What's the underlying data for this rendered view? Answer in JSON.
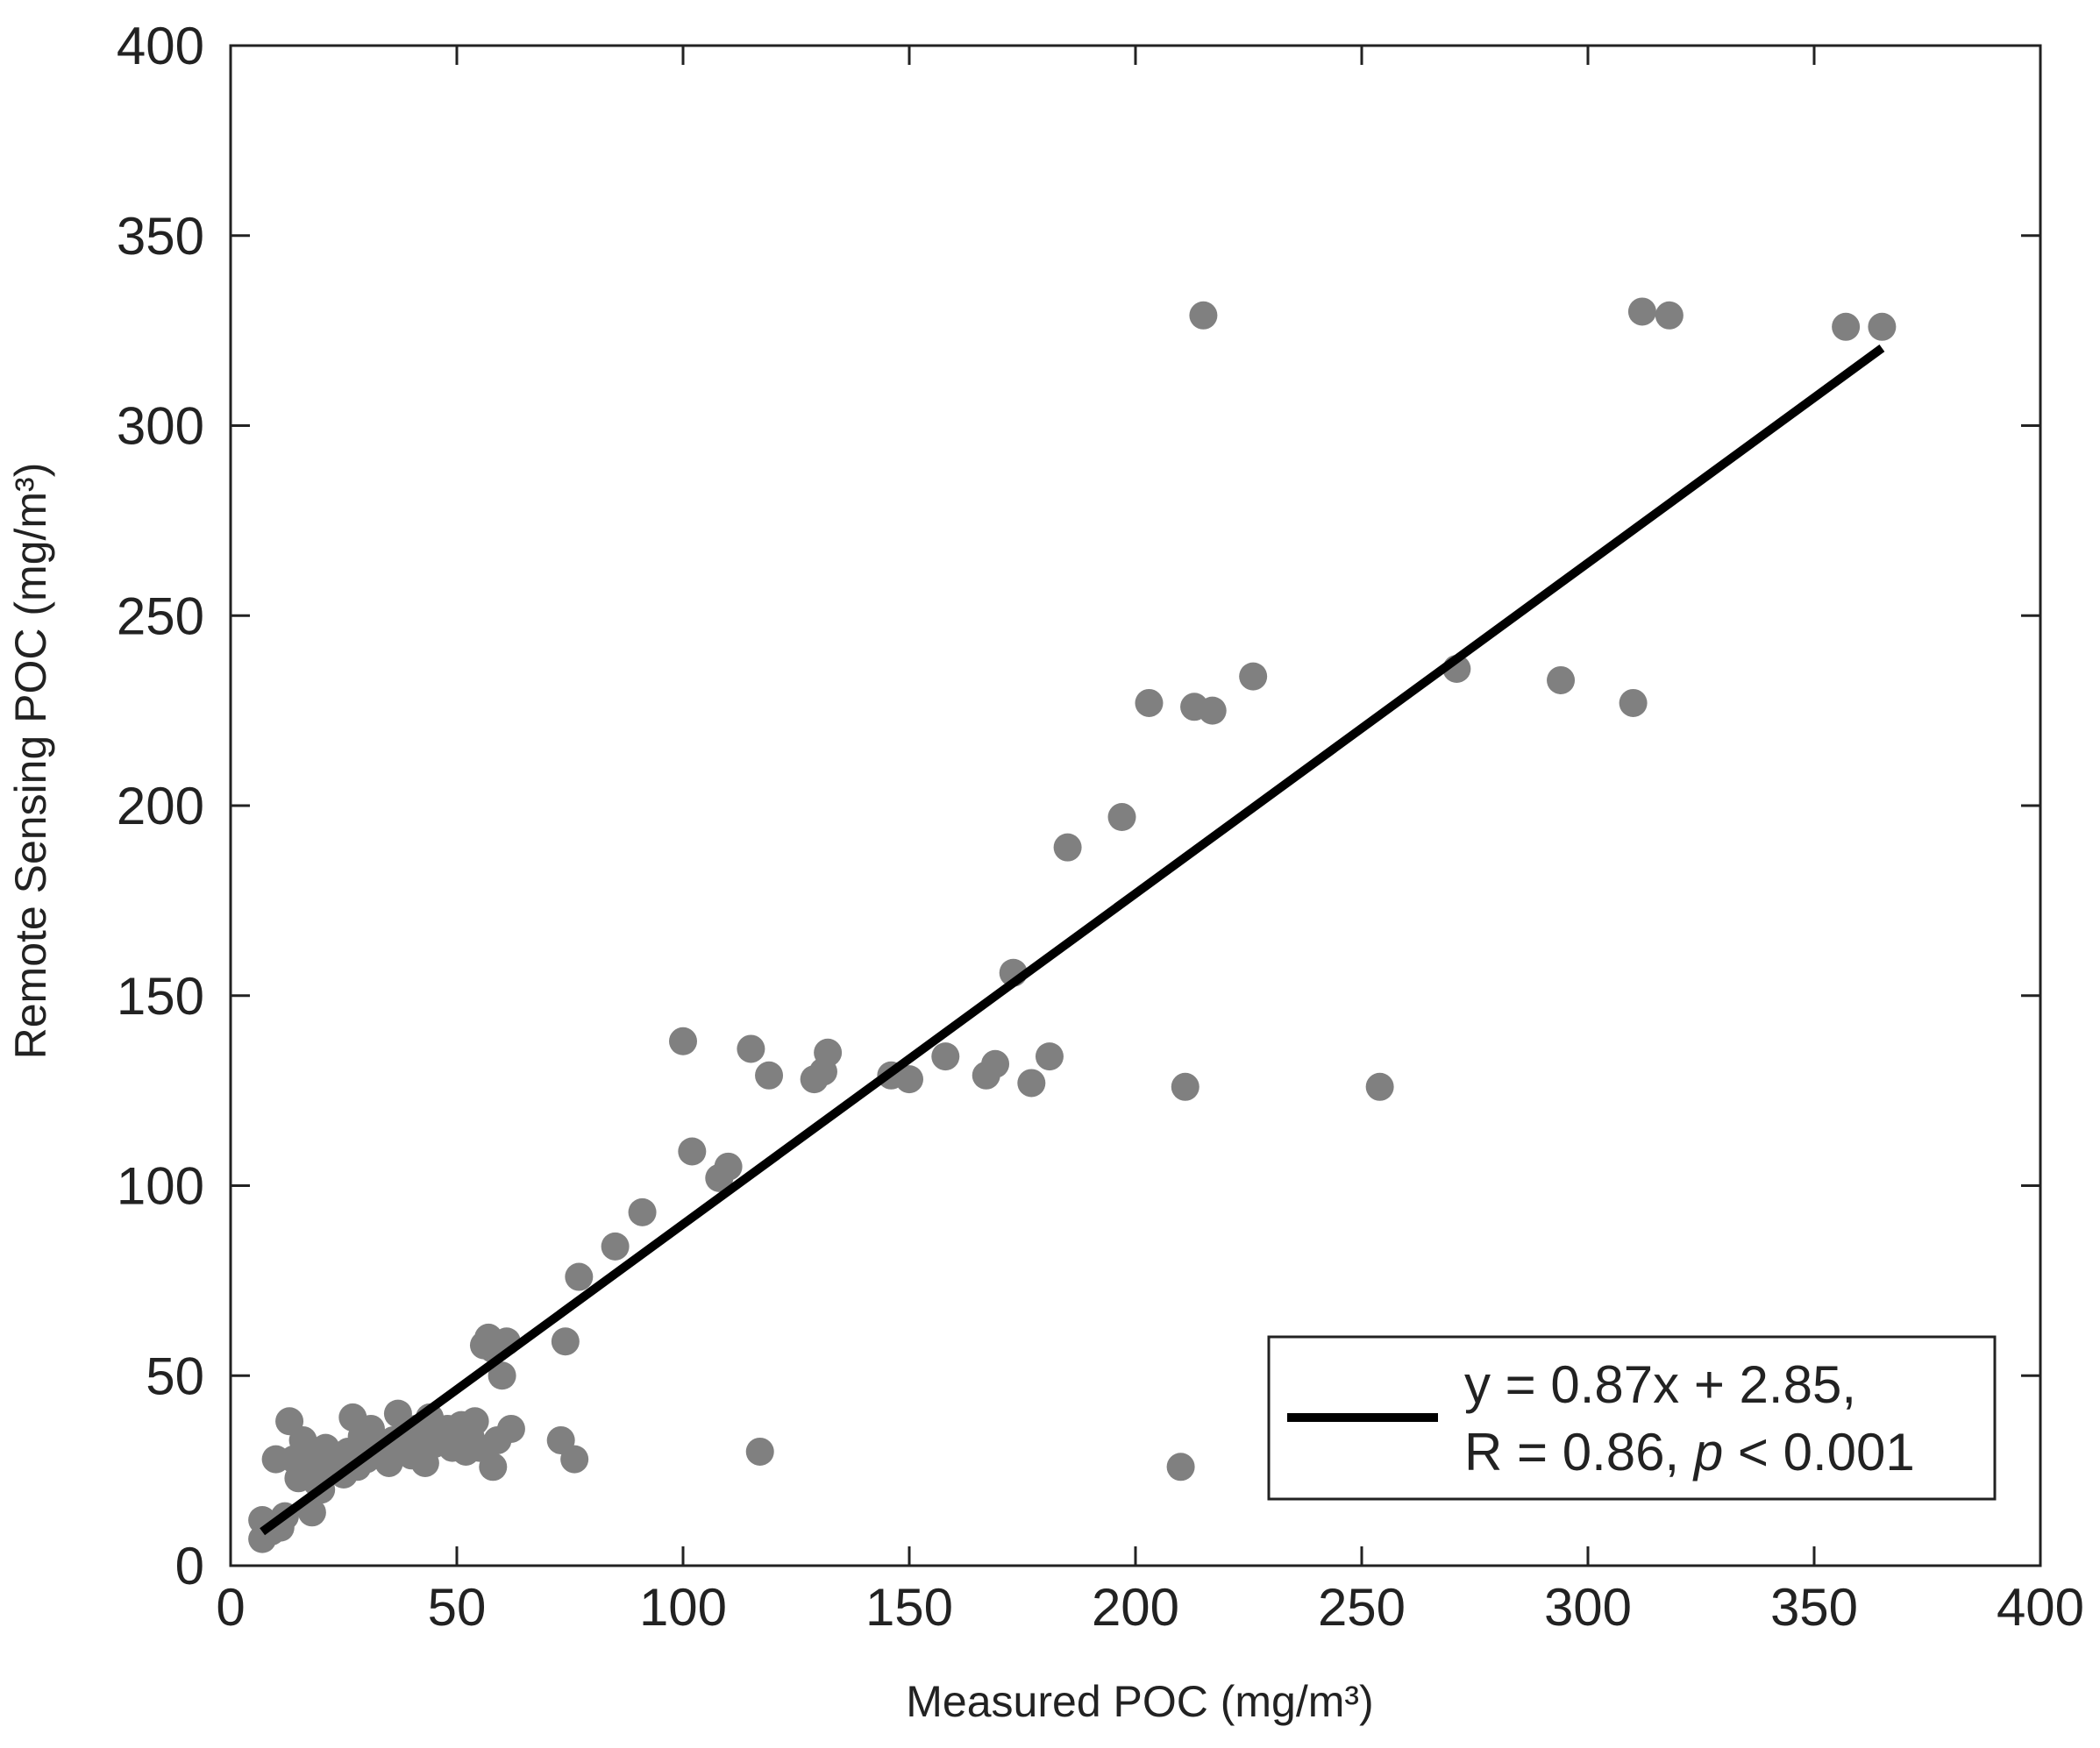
{
  "chart_data": {
    "type": "scatter",
    "xlabel": "Measured POC (mg/m³)",
    "ylabel": "Remote Sensing POC (mg/m³)",
    "xlim": [
      0,
      400
    ],
    "ylim": [
      0,
      400
    ],
    "xticks": [
      "0",
      "50",
      "100",
      "150",
      "200",
      "250",
      "300",
      "350",
      "400"
    ],
    "yticks": [
      "0",
      "50",
      "100",
      "150",
      "200",
      "250",
      "300",
      "350",
      "400"
    ],
    "grid": false,
    "legend_position": "bottom-right",
    "colors": {
      "points": "#808080",
      "fit": "#000000",
      "axes": "#222222"
    },
    "legend": {
      "line1": "y = 0.87x + 2.85,",
      "line2_prefix": "R = 0.86, ",
      "line2_italic": "p",
      "line2_suffix": " < 0.001"
    },
    "fit": {
      "slope": 0.87,
      "intercept": 2.85,
      "x_range": [
        7,
        365
      ]
    },
    "points": [
      [
        7,
        12
      ],
      [
        7,
        7
      ],
      [
        9,
        9
      ],
      [
        11,
        10
      ],
      [
        12,
        13
      ],
      [
        10,
        28
      ],
      [
        13,
        38
      ],
      [
        14,
        28
      ],
      [
        15,
        23
      ],
      [
        16,
        33
      ],
      [
        17,
        30
      ],
      [
        18,
        28
      ],
      [
        18,
        14
      ],
      [
        19,
        22
      ],
      [
        20,
        20
      ],
      [
        21,
        31
      ],
      [
        22,
        26
      ],
      [
        24,
        29
      ],
      [
        25,
        24
      ],
      [
        26,
        30
      ],
      [
        27,
        39
      ],
      [
        28,
        26
      ],
      [
        29,
        34
      ],
      [
        30,
        28
      ],
      [
        31,
        36
      ],
      [
        32,
        32
      ],
      [
        33,
        29
      ],
      [
        34,
        30
      ],
      [
        35,
        27
      ],
      [
        36,
        33
      ],
      [
        37,
        40
      ],
      [
        38,
        31
      ],
      [
        39,
        34
      ],
      [
        40,
        29
      ],
      [
        41,
        36
      ],
      [
        42,
        30
      ],
      [
        43,
        27
      ],
      [
        44,
        39
      ],
      [
        45,
        32
      ],
      [
        47,
        34
      ],
      [
        48,
        36
      ],
      [
        49,
        31
      ],
      [
        50,
        33
      ],
      [
        51,
        37
      ],
      [
        52,
        30
      ],
      [
        53,
        34
      ],
      [
        54,
        38
      ],
      [
        55,
        31
      ],
      [
        56,
        58
      ],
      [
        57,
        60
      ],
      [
        58,
        57
      ],
      [
        58,
        26
      ],
      [
        59,
        33
      ],
      [
        60,
        50
      ],
      [
        61,
        59
      ],
      [
        62,
        36
      ],
      [
        73,
        33
      ],
      [
        74,
        59
      ],
      [
        76,
        28
      ],
      [
        77,
        76
      ],
      [
        85,
        84
      ],
      [
        91,
        93
      ],
      [
        100,
        138
      ],
      [
        102,
        109
      ],
      [
        108,
        102
      ],
      [
        110,
        105
      ],
      [
        115,
        136
      ],
      [
        117,
        30
      ],
      [
        119,
        129
      ],
      [
        129,
        128
      ],
      [
        131,
        130
      ],
      [
        132,
        135
      ],
      [
        146,
        129
      ],
      [
        150,
        128
      ],
      [
        158,
        134
      ],
      [
        167,
        129
      ],
      [
        169,
        132
      ],
      [
        173,
        156
      ],
      [
        177,
        127
      ],
      [
        181,
        134
      ],
      [
        185,
        189
      ],
      [
        197,
        197
      ],
      [
        203,
        227
      ],
      [
        210,
        26
      ],
      [
        211,
        126
      ],
      [
        213,
        226
      ],
      [
        215,
        329
      ],
      [
        217,
        225
      ],
      [
        226,
        234
      ],
      [
        254,
        126
      ],
      [
        271,
        236
      ],
      [
        294,
        233
      ],
      [
        310,
        227
      ],
      [
        312,
        330
      ],
      [
        318,
        329
      ],
      [
        357,
        326
      ],
      [
        365,
        326
      ]
    ]
  }
}
